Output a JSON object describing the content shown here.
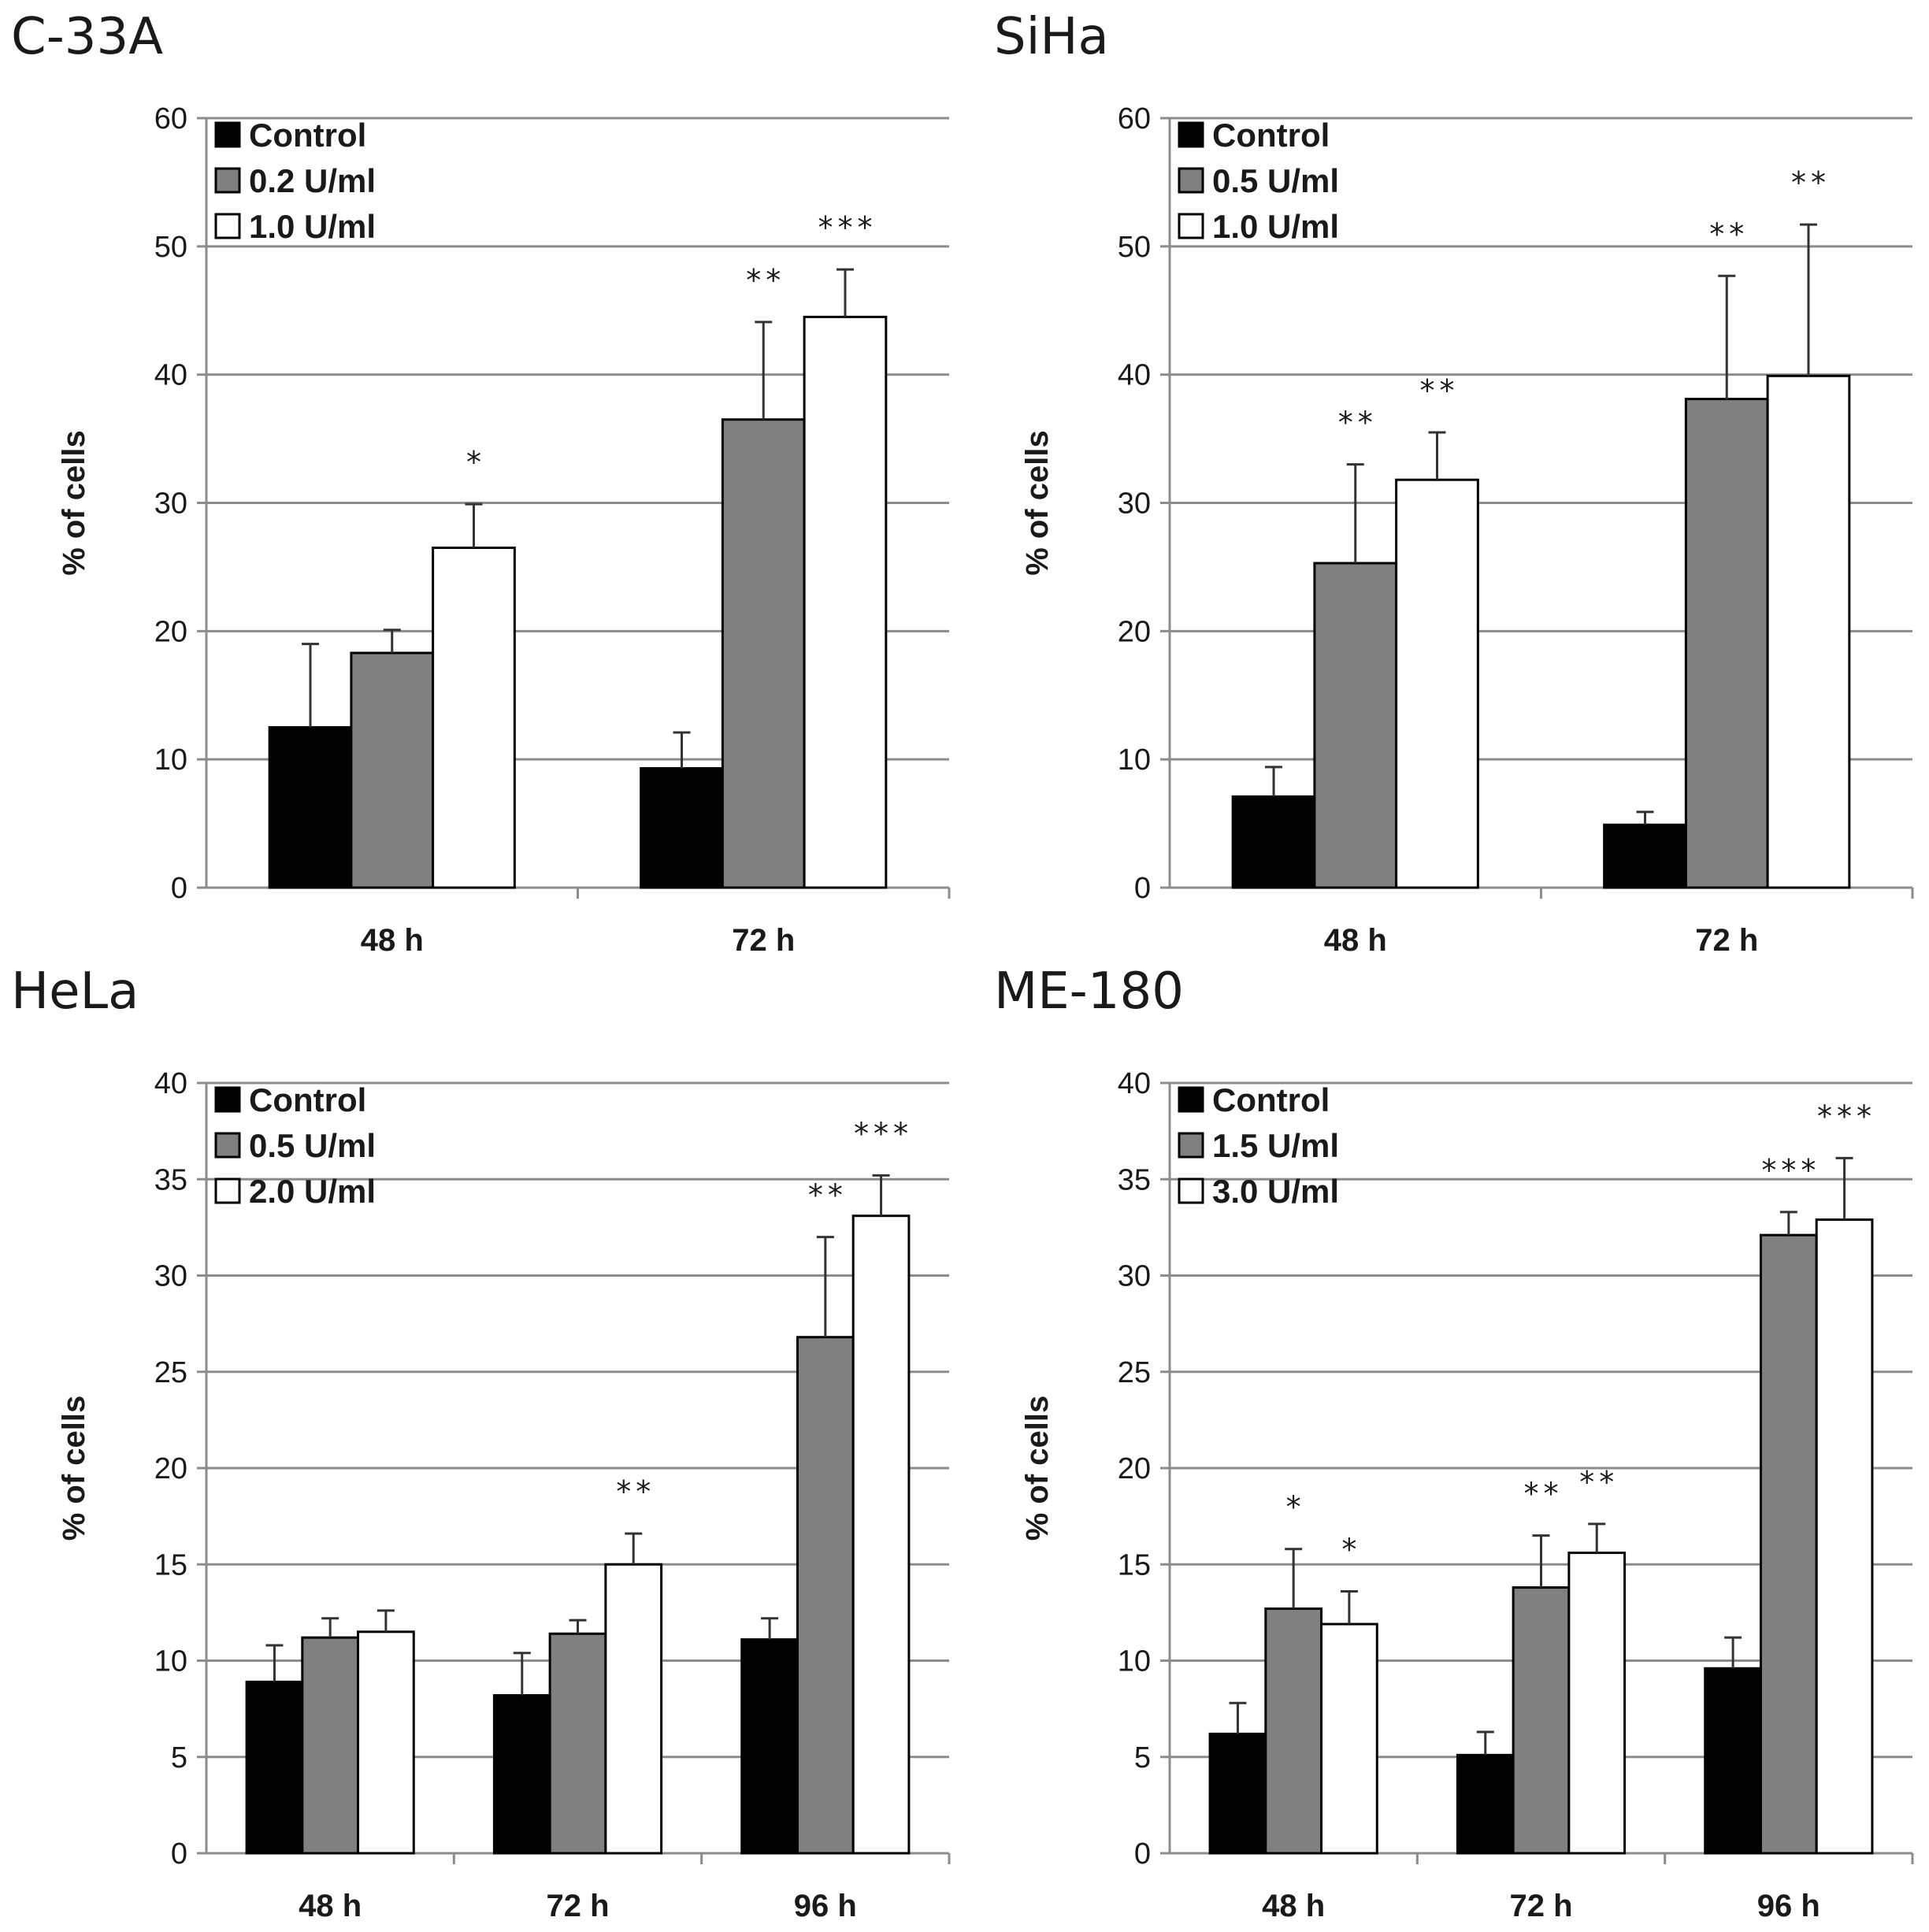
{
  "chart_data": [
    {
      "type": "bar",
      "title": "C-33A",
      "ylabel": "% of cells",
      "ylim": [
        0,
        60
      ],
      "yticks": [
        0,
        10,
        20,
        30,
        40,
        50,
        60
      ],
      "categories": [
        "48 h",
        "72 h"
      ],
      "legend_position": "top-left",
      "colors": [
        "#000000",
        "#808080",
        "#ffffff"
      ],
      "series": [
        {
          "name": "Control",
          "values": [
            12.5,
            9.3
          ],
          "errors": [
            6.5,
            2.8
          ],
          "significance": [
            "",
            ""
          ]
        },
        {
          "name": "0.2 U/ml",
          "values": [
            18.3,
            36.5
          ],
          "errors": [
            1.8,
            7.6
          ],
          "significance": [
            "",
            "**"
          ]
        },
        {
          "name": "1.0 U/ml",
          "values": [
            26.5,
            44.5
          ],
          "errors": [
            3.4,
            3.7
          ],
          "significance": [
            "*",
            "***"
          ]
        }
      ]
    },
    {
      "type": "bar",
      "title": "SiHa",
      "ylabel": "% of cells",
      "ylim": [
        0,
        60
      ],
      "yticks": [
        0,
        10,
        20,
        30,
        40,
        50,
        60
      ],
      "categories": [
        "48 h",
        "72 h"
      ],
      "legend_position": "top-left",
      "colors": [
        "#000000",
        "#808080",
        "#ffffff"
      ],
      "series": [
        {
          "name": "Control",
          "values": [
            7.1,
            4.9
          ],
          "errors": [
            2.3,
            1.0
          ],
          "significance": [
            "",
            ""
          ]
        },
        {
          "name": "0.5 U/ml",
          "values": [
            25.3,
            38.1
          ],
          "errors": [
            7.7,
            9.6
          ],
          "significance": [
            "**",
            "**"
          ]
        },
        {
          "name": "1.0 U/ml",
          "values": [
            31.8,
            39.9
          ],
          "errors": [
            3.7,
            11.8
          ],
          "significance": [
            "**",
            "**"
          ]
        }
      ]
    },
    {
      "type": "bar",
      "title": "HeLa",
      "ylabel": "% of cells",
      "ylim": [
        0,
        40
      ],
      "yticks": [
        0,
        5,
        10,
        15,
        20,
        25,
        30,
        35,
        40
      ],
      "categories": [
        "48 h",
        "72 h",
        "96 h"
      ],
      "legend_position": "top-left",
      "colors": [
        "#000000",
        "#808080",
        "#ffffff"
      ],
      "series": [
        {
          "name": "Control",
          "values": [
            8.9,
            8.2,
            11.1
          ],
          "errors": [
            1.9,
            2.2,
            1.1
          ],
          "significance": [
            "",
            "",
            ""
          ]
        },
        {
          "name": "0.5 U/ml",
          "values": [
            11.2,
            11.4,
            26.8
          ],
          "errors": [
            1.0,
            0.7,
            5.2
          ],
          "significance": [
            "",
            "",
            "**"
          ]
        },
        {
          "name": "2.0 U/ml",
          "values": [
            11.5,
            15.0,
            33.1
          ],
          "errors": [
            1.1,
            1.6,
            2.1
          ],
          "significance": [
            "",
            "**",
            "***"
          ]
        }
      ]
    },
    {
      "type": "bar",
      "title": "ME-180",
      "ylabel": "% of cells",
      "ylim": [
        0,
        40
      ],
      "yticks": [
        0,
        5,
        10,
        15,
        20,
        25,
        30,
        35,
        40
      ],
      "categories": [
        "48 h",
        "72 h",
        "96 h"
      ],
      "legend_position": "top-left",
      "colors": [
        "#000000",
        "#808080",
        "#ffffff"
      ],
      "series": [
        {
          "name": "Control",
          "values": [
            6.2,
            5.1,
            9.6
          ],
          "errors": [
            1.6,
            1.2,
            1.6
          ],
          "significance": [
            "",
            "",
            ""
          ]
        },
        {
          "name": "1.5 U/ml",
          "values": [
            12.7,
            13.8,
            32.1
          ],
          "errors": [
            3.1,
            2.7,
            1.2
          ],
          "significance": [
            "*",
            "**",
            "***"
          ]
        },
        {
          "name": "3.0 U/ml",
          "values": [
            11.9,
            15.6,
            32.9
          ],
          "errors": [
            1.7,
            1.5,
            3.2
          ],
          "significance": [
            "*",
            "**",
            "***"
          ]
        }
      ]
    }
  ]
}
